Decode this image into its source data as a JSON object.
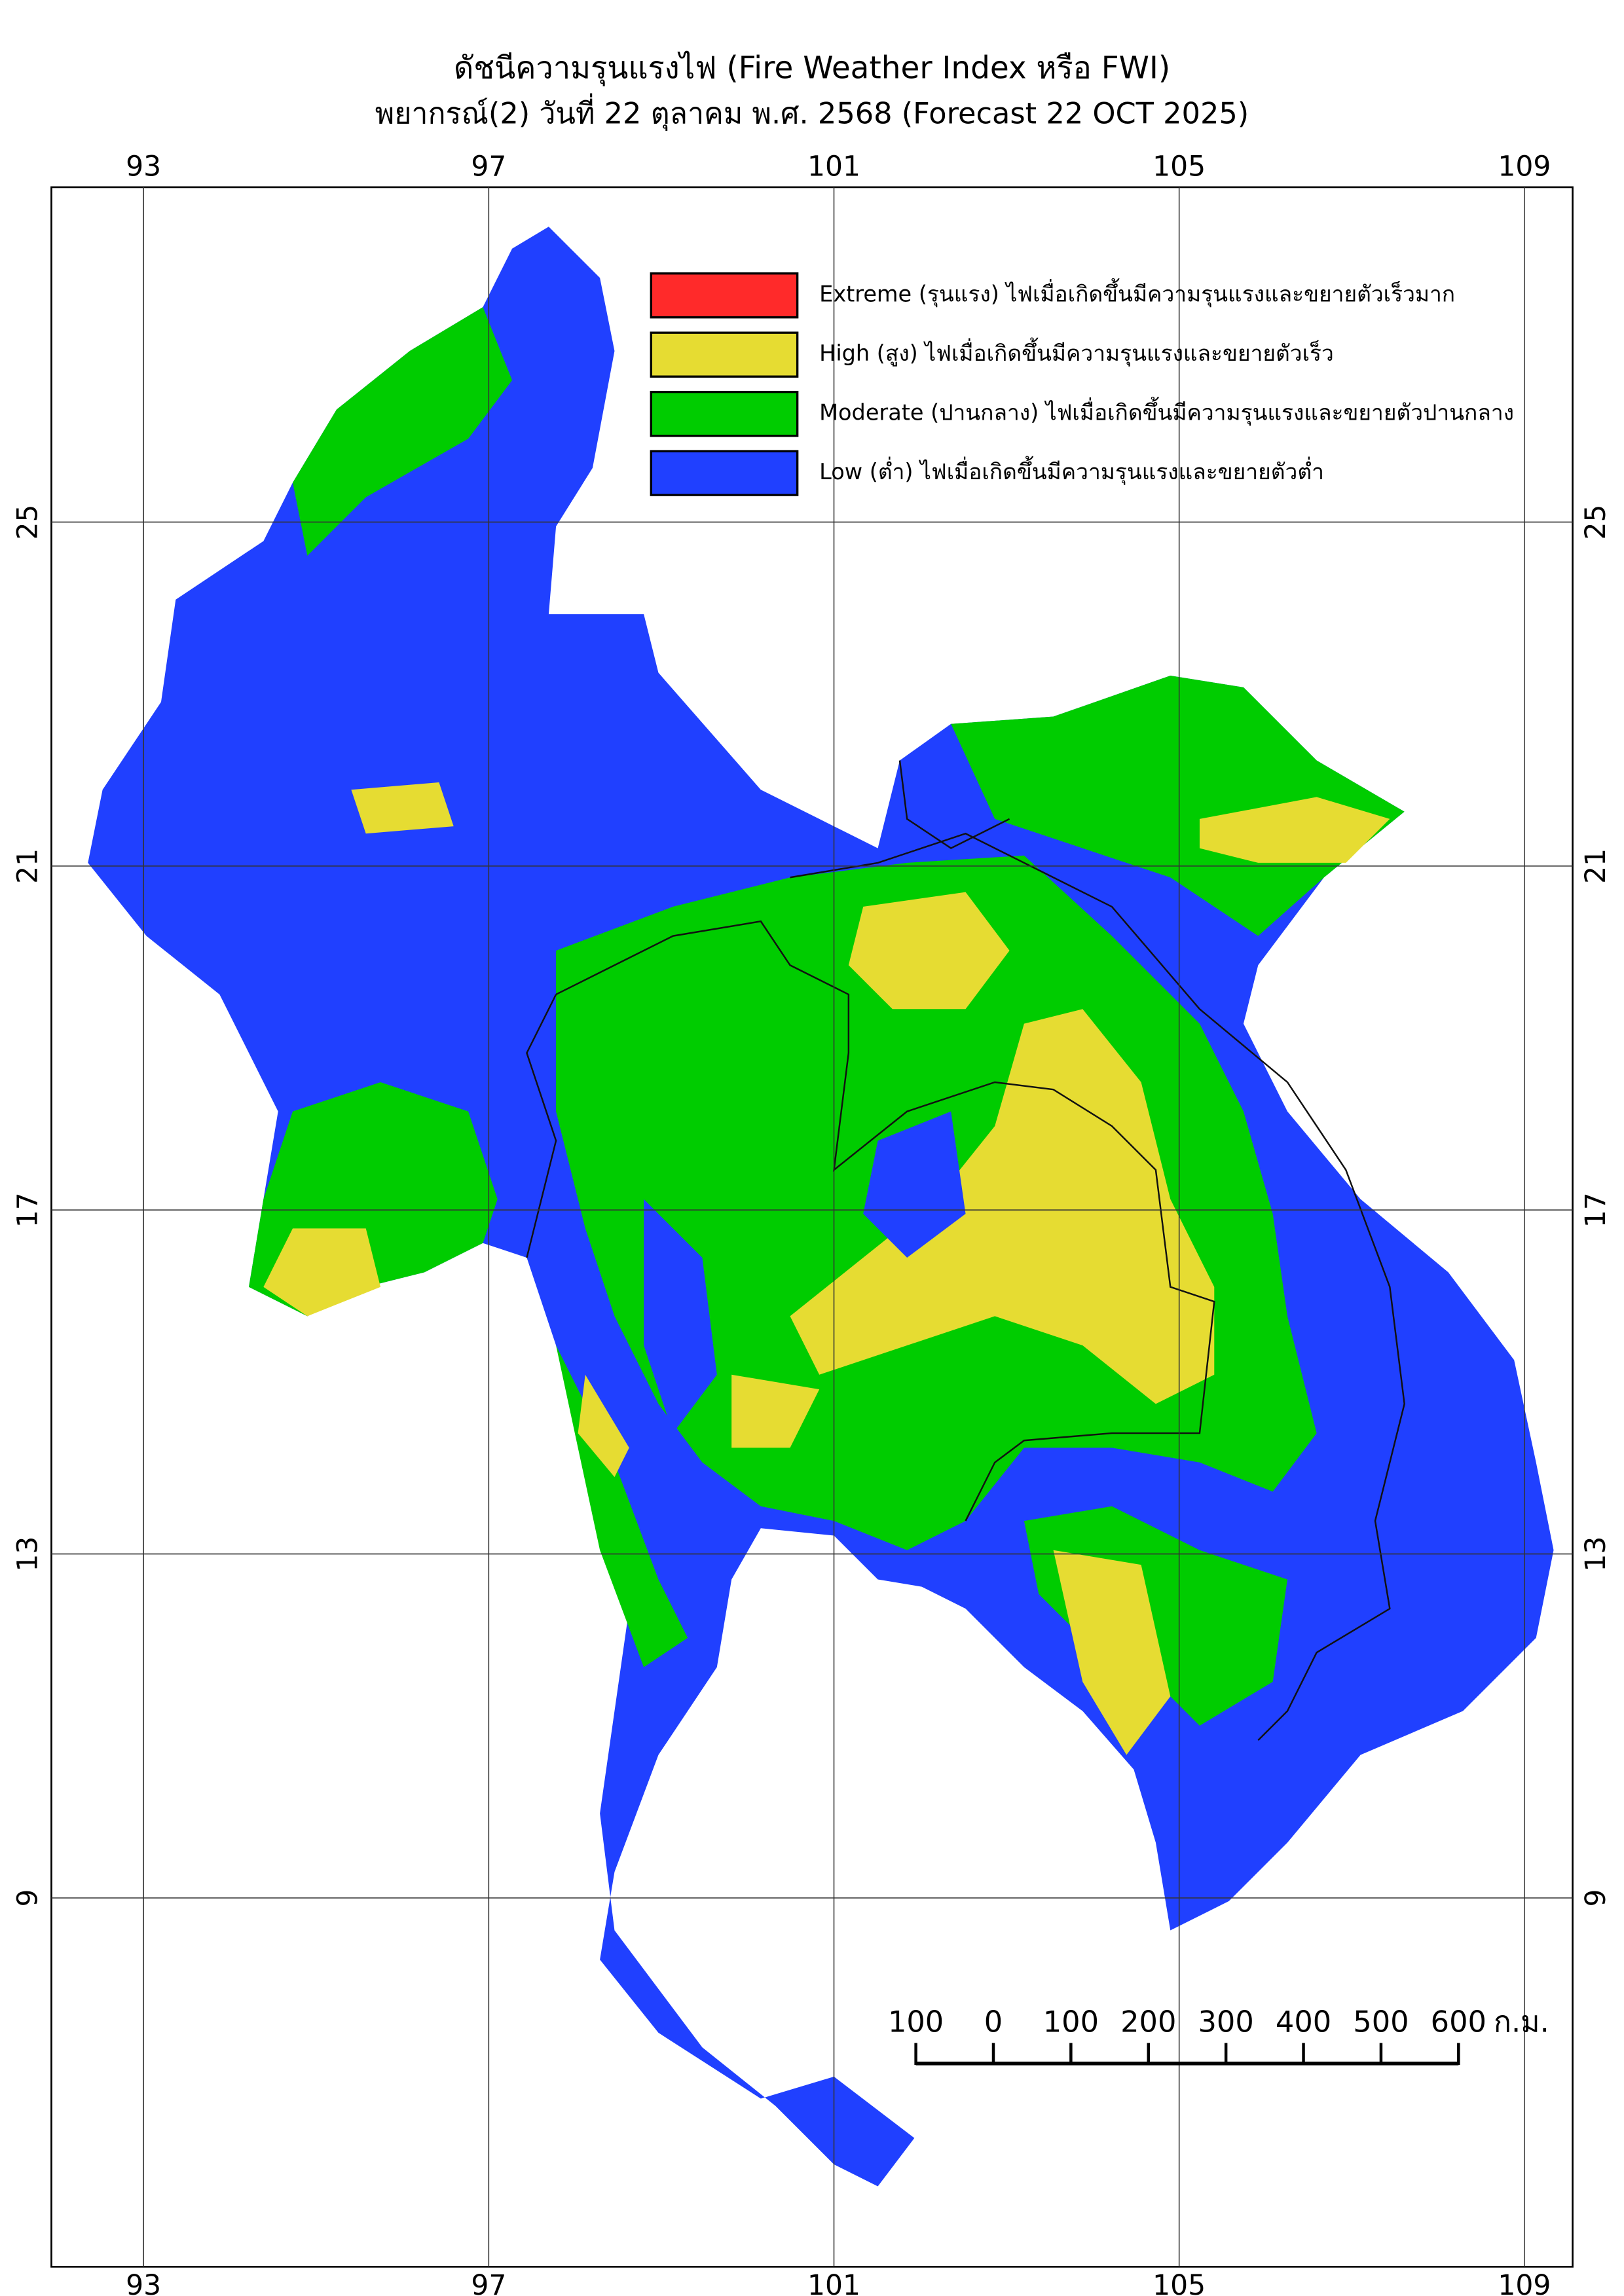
{
  "map": {
    "title": "ดัชนีความรุนแรงไฟ (Fire Weather Index หรือ FWI)",
    "subtitle": "พยากรณ์(2) วันที่ 22 ตุลาคม พ.ศ. 2568 (Forecast 22 OCT 2025)",
    "lon_ticks": [
      93,
      97,
      101,
      105,
      109
    ],
    "lat_ticks": [
      25,
      21,
      17,
      13,
      9
    ],
    "legend": [
      {
        "label": "Extreme (รุนแรง) ไฟเมื่อเกิดขึ้นมีความรุนแรงและขยายตัวเร็วมาก",
        "color": "#ff2a2a"
      },
      {
        "label": "High (สูง) ไฟเมื่อเกิดขึ้นมีความรุนแรงและขยายตัวเร็ว",
        "color": "#e6dc32"
      },
      {
        "label": "Moderate (ปานกลาง) ไฟเมื่อเกิดขึ้นมีความรุนแรงและขยายตัวปานกลาง",
        "color": "#00cc00"
      },
      {
        "label": "Low (ต่ำ) ไฟเมื่อเกิดขึ้นมีความรุนแรงและขยายตัวต่ำ",
        "color": "#2040ff"
      }
    ],
    "scale_bar": {
      "ticks": [
        {
          "value": -100,
          "label": "100"
        },
        0,
        100,
        200,
        300,
        400,
        500,
        600
      ],
      "unit": "ก.ม."
    }
  }
}
